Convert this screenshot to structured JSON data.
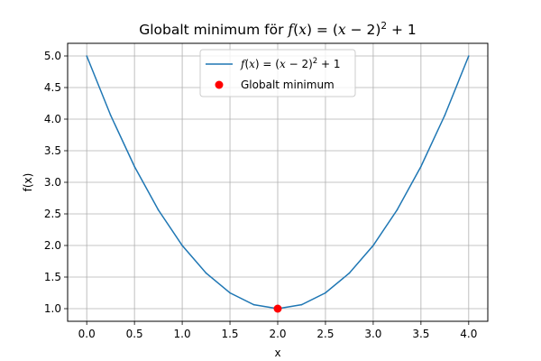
{
  "chart_data": {
    "type": "line",
    "title": {
      "prefix": "Globalt minimum för ",
      "math": {
        "f": "f",
        "x": "x",
        "paren_open": "(",
        "paren_close": ")",
        "eq": " = (",
        "x2": "x",
        "minus": " − 2)",
        "exp": "2",
        "plus": " + 1"
      }
    },
    "xlabel": "x",
    "ylabel": "f(x)",
    "xlim": [
      -0.2,
      4.2
    ],
    "ylim": [
      0.8,
      5.2
    ],
    "xticks": [
      0.0,
      0.5,
      1.0,
      1.5,
      2.0,
      2.5,
      3.0,
      3.5,
      4.0
    ],
    "xtick_labels": [
      "0.0",
      "0.5",
      "1.0",
      "1.5",
      "2.0",
      "2.5",
      "3.0",
      "3.5",
      "4.0"
    ],
    "yticks": [
      1.0,
      1.5,
      2.0,
      2.5,
      3.0,
      3.5,
      4.0,
      4.5,
      5.0
    ],
    "ytick_labels": [
      "1.0",
      "1.5",
      "2.0",
      "2.5",
      "3.0",
      "3.5",
      "4.0",
      "4.5",
      "5.0"
    ],
    "grid": true,
    "legend_position": "top-center",
    "series": [
      {
        "kind": "line",
        "color": "#1f77b4",
        "legend_math": {
          "f": "f",
          "x": "x",
          "paren_open": "(",
          "paren_close": ")",
          "eq": " = (",
          "x2": "x",
          "minus": " − 2)",
          "exp": "2",
          "plus": " + 1"
        },
        "x": [
          0.0,
          0.25,
          0.5,
          0.75,
          1.0,
          1.25,
          1.5,
          1.75,
          2.0,
          2.25,
          2.5,
          2.75,
          3.0,
          3.25,
          3.5,
          3.75,
          4.0
        ],
        "y": [
          5.0,
          4.0625,
          3.25,
          2.5625,
          2.0,
          1.5625,
          1.25,
          1.0625,
          1.0,
          1.0625,
          1.25,
          1.5625,
          2.0,
          2.5625,
          3.25,
          4.0625,
          5.0
        ]
      },
      {
        "kind": "point",
        "name": "Globalt minimum",
        "color": "#ff0000",
        "x": [
          2.0
        ],
        "y": [
          1.0
        ]
      }
    ]
  }
}
